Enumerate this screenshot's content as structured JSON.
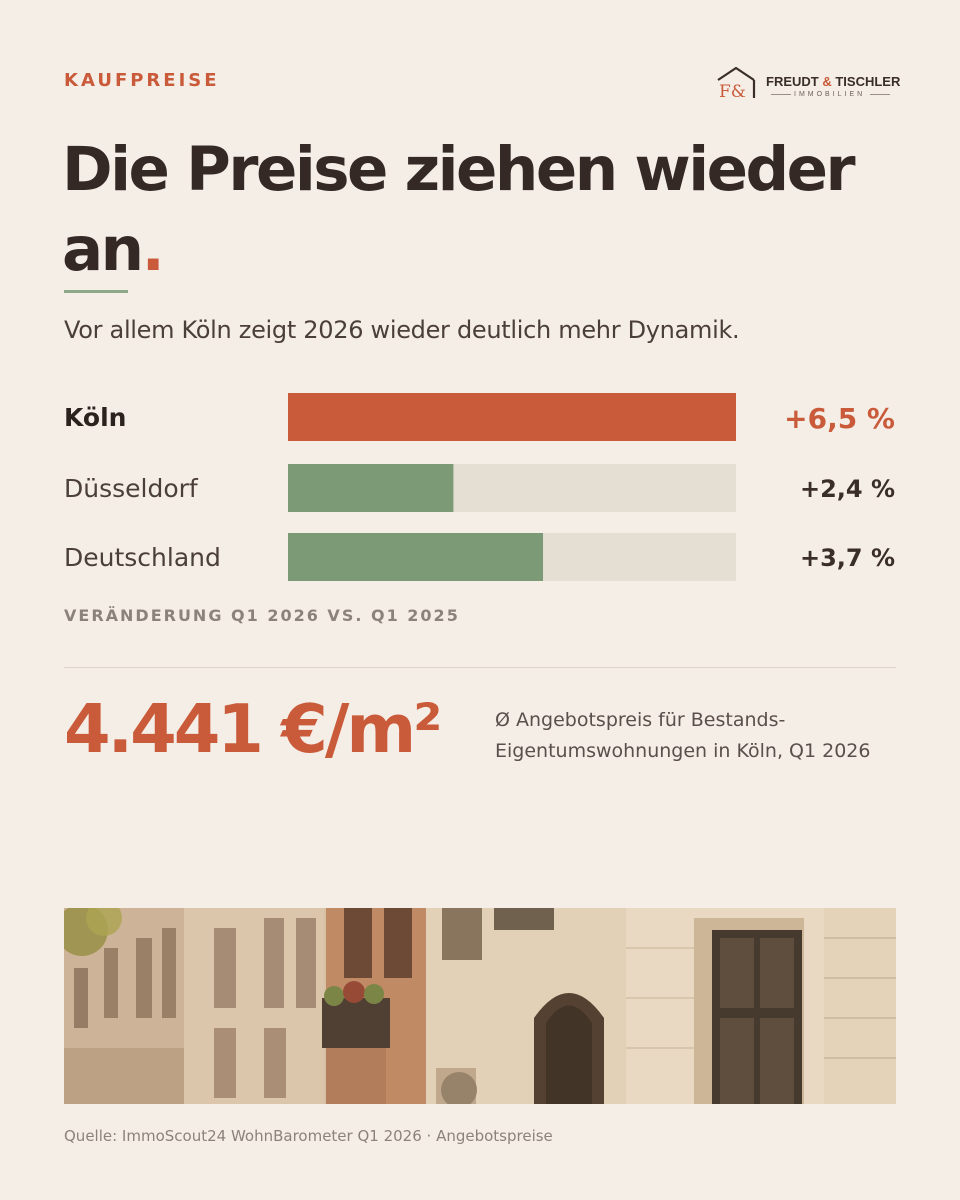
{
  "eyebrow": "KAUFPREISE",
  "brand": {
    "name_left": "FREUDT",
    "name_amp": "&",
    "name_right": "TISCHLER",
    "sub": "IMMOBILIEN",
    "monogram": "F&"
  },
  "headline": {
    "text": "Die Preise ziehen wieder an",
    "dot": "."
  },
  "subtitle": "Vor allem Köln zeigt 2026 wieder deutlich mehr Dynamik.",
  "colors": {
    "accent": "#c95a3a",
    "green": "#7d9a77",
    "track": "#e4ded3",
    "text": "#342924",
    "muted": "#8c827c",
    "background": "#f5eee6"
  },
  "chart_data": {
    "type": "bar",
    "orientation": "horizontal",
    "categories": [
      "Köln",
      "Düsseldorf",
      "Deutschland"
    ],
    "values": [
      6.5,
      2.4,
      3.7
    ],
    "value_labels": [
      "+6,5 %",
      "+2,4 %",
      "+3,7 %"
    ],
    "highlight": "Köln",
    "xlim": [
      0,
      6.5
    ],
    "note": "VERÄNDERUNG Q1 2026 VS. Q1 2025"
  },
  "kpi": {
    "value": "4.441 €/m²",
    "description": "Ø Angebotspreis für Bestands-Eigentumswohnungen in Köln, Q1 2026"
  },
  "source": "Quelle: ImmoScout24 WohnBarometer Q1 2026 · Angebotspreise"
}
